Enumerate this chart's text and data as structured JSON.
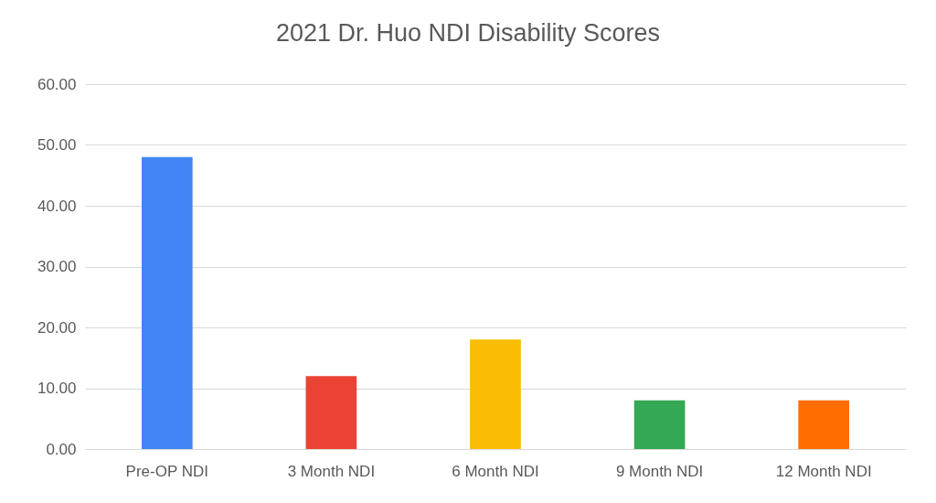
{
  "chart_data": {
    "type": "bar",
    "title": "2021 Dr. Huo NDI Disability Scores",
    "categories": [
      "Pre-OP NDI",
      "3 Month NDI",
      "6 Month NDI",
      "9 Month NDI",
      "12 Month NDI"
    ],
    "values": [
      48,
      12,
      18,
      8,
      8
    ],
    "colors": [
      "#4285f4",
      "#ea4335",
      "#fbbc04",
      "#34a853",
      "#ff6d01"
    ],
    "ylim": [
      0,
      60
    ],
    "yticks": [
      {
        "value": 0,
        "label": "0.00"
      },
      {
        "value": 10,
        "label": "10.00"
      },
      {
        "value": 20,
        "label": "20.00"
      },
      {
        "value": 30,
        "label": "30.00"
      },
      {
        "value": 40,
        "label": "40.00"
      },
      {
        "value": 50,
        "label": "50.00"
      },
      {
        "value": 60,
        "label": "60.00"
      }
    ],
    "grid": "y"
  }
}
